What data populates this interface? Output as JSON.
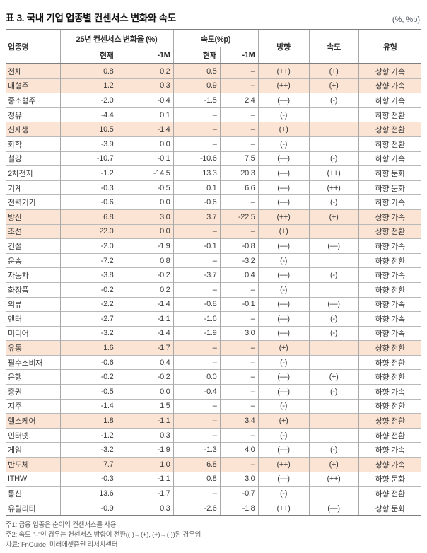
{
  "title": "표 3. 국내 기업 업종별 컨센서스 변화와 속도",
  "unit": "(%, %p)",
  "colors": {
    "highlight": "#fce4d4",
    "border_major": "#7f7f7f",
    "border_minor": "#b9b9b9",
    "text": "#3a3a3a"
  },
  "table": {
    "col_sector": "업종명",
    "group_change": "25년 컨센서스 변화율 (%)",
    "group_speed": "속도(%p)",
    "sub_now": "현재",
    "sub_1m": "-1M",
    "col_direction": "방향",
    "col_speed": "속도",
    "col_type": "유형",
    "rows": [
      {
        "name": "전체",
        "chg_now": "0.8",
        "chg_1m": "0.2",
        "spd_now": "0.5",
        "spd_1m": "–",
        "dir": "(++)",
        "spd": "(+)",
        "type": "상향 가속",
        "hl": true
      },
      {
        "name": "대형주",
        "chg_now": "1.2",
        "chg_1m": "0.3",
        "spd_now": "0.9",
        "spd_1m": "–",
        "dir": "(++)",
        "spd": "(+)",
        "type": "상향 가속",
        "hl": true
      },
      {
        "name": "중소형주",
        "chg_now": "-2.0",
        "chg_1m": "-0.4",
        "spd_now": "-1.5",
        "spd_1m": "2.4",
        "dir": "(—)",
        "spd": "(-)",
        "type": "하향 가속",
        "hl": false
      },
      {
        "name": "정유",
        "chg_now": "-4.4",
        "chg_1m": "0.1",
        "spd_now": "–",
        "spd_1m": "–",
        "dir": "(-)",
        "spd": "",
        "type": "하향 전환",
        "hl": false
      },
      {
        "name": "신재생",
        "chg_now": "10.5",
        "chg_1m": "-1.4",
        "spd_now": "–",
        "spd_1m": "–",
        "dir": "(+)",
        "spd": "",
        "type": "상향 전환",
        "hl": true
      },
      {
        "name": "화학",
        "chg_now": "-3.9",
        "chg_1m": "0.0",
        "spd_now": "–",
        "spd_1m": "–",
        "dir": "(-)",
        "spd": "",
        "type": "하향 전환",
        "hl": false
      },
      {
        "name": "철강",
        "chg_now": "-10.7",
        "chg_1m": "-0.1",
        "spd_now": "-10.6",
        "spd_1m": "7.5",
        "dir": "(—)",
        "spd": "(-)",
        "type": "하향 가속",
        "hl": false
      },
      {
        "name": "2차전지",
        "chg_now": "-1.2",
        "chg_1m": "-14.5",
        "spd_now": "13.3",
        "spd_1m": "20.3",
        "dir": "(—)",
        "spd": "(++)",
        "type": "하향 둔화",
        "hl": false
      },
      {
        "name": "기계",
        "chg_now": "-0.3",
        "chg_1m": "-0.5",
        "spd_now": "0.1",
        "spd_1m": "6.6",
        "dir": "(—)",
        "spd": "(++)",
        "type": "하향 둔화",
        "hl": false
      },
      {
        "name": "전력기기",
        "chg_now": "-0.6",
        "chg_1m": "0.0",
        "spd_now": "-0.6",
        "spd_1m": "–",
        "dir": "(—)",
        "spd": "(-)",
        "type": "하향 가속",
        "hl": false
      },
      {
        "name": "방산",
        "chg_now": "6.8",
        "chg_1m": "3.0",
        "spd_now": "3.7",
        "spd_1m": "-22.5",
        "dir": "(++)",
        "spd": "(+)",
        "type": "상향 가속",
        "hl": true
      },
      {
        "name": "조선",
        "chg_now": "22.0",
        "chg_1m": "0.0",
        "spd_now": "–",
        "spd_1m": "–",
        "dir": "(+)",
        "spd": "",
        "type": "상향 전환",
        "hl": true
      },
      {
        "name": "건설",
        "chg_now": "-2.0",
        "chg_1m": "-1.9",
        "spd_now": "-0.1",
        "spd_1m": "-0.8",
        "dir": "(—)",
        "spd": "(—)",
        "type": "하향 가속",
        "hl": false
      },
      {
        "name": "운송",
        "chg_now": "-7.2",
        "chg_1m": "0.8",
        "spd_now": "–",
        "spd_1m": "-3.2",
        "dir": "(-)",
        "spd": "",
        "type": "하향 전환",
        "hl": false
      },
      {
        "name": "자동차",
        "chg_now": "-3.8",
        "chg_1m": "-0.2",
        "spd_now": "-3.7",
        "spd_1m": "0.4",
        "dir": "(—)",
        "spd": "(-)",
        "type": "하향 가속",
        "hl": false
      },
      {
        "name": "화장품",
        "chg_now": "-0.2",
        "chg_1m": "0.2",
        "spd_now": "–",
        "spd_1m": "–",
        "dir": "(-)",
        "spd": "",
        "type": "하향 전환",
        "hl": false
      },
      {
        "name": "의류",
        "chg_now": "-2.2",
        "chg_1m": "-1.4",
        "spd_now": "-0.8",
        "spd_1m": "-0.1",
        "dir": "(—)",
        "spd": "(—)",
        "type": "하향 가속",
        "hl": false
      },
      {
        "name": "엔터",
        "chg_now": "-2.7",
        "chg_1m": "-1.1",
        "spd_now": "-1.6",
        "spd_1m": "–",
        "dir": "(—)",
        "spd": "(-)",
        "type": "하향 가속",
        "hl": false
      },
      {
        "name": "미디어",
        "chg_now": "-3.2",
        "chg_1m": "-1.4",
        "spd_now": "-1.9",
        "spd_1m": "3.0",
        "dir": "(—)",
        "spd": "(-)",
        "type": "하향 가속",
        "hl": false
      },
      {
        "name": "유통",
        "chg_now": "1.6",
        "chg_1m": "-1.7",
        "spd_now": "–",
        "spd_1m": "–",
        "dir": "(+)",
        "spd": "",
        "type": "상향 전환",
        "hl": true
      },
      {
        "name": "필수소비재",
        "chg_now": "-0.6",
        "chg_1m": "0.4",
        "spd_now": "–",
        "spd_1m": "–",
        "dir": "(-)",
        "spd": "",
        "type": "하향 전환",
        "hl": false
      },
      {
        "name": "은행",
        "chg_now": "-0.2",
        "chg_1m": "-0.2",
        "spd_now": "0.0",
        "spd_1m": "–",
        "dir": "(—)",
        "spd": "(+)",
        "type": "하향 전환",
        "hl": false
      },
      {
        "name": "증권",
        "chg_now": "-0.5",
        "chg_1m": "0.0",
        "spd_now": "-0.4",
        "spd_1m": "–",
        "dir": "(—)",
        "spd": "(-)",
        "type": "하향 가속",
        "hl": false
      },
      {
        "name": "지주",
        "chg_now": "-1.4",
        "chg_1m": "1.5",
        "spd_now": "–",
        "spd_1m": "–",
        "dir": "(-)",
        "spd": "",
        "type": "하향 전환",
        "hl": false
      },
      {
        "name": "헬스케어",
        "chg_now": "1.8",
        "chg_1m": "-1.1",
        "spd_now": "–",
        "spd_1m": "3.4",
        "dir": "(+)",
        "spd": "",
        "type": "상향 전환",
        "hl": true
      },
      {
        "name": "인터넷",
        "chg_now": "-1.2",
        "chg_1m": "0.3",
        "spd_now": "–",
        "spd_1m": "–",
        "dir": "(-)",
        "spd": "",
        "type": "하향 전환",
        "hl": false
      },
      {
        "name": "게임",
        "chg_now": "-3.2",
        "chg_1m": "-1.9",
        "spd_now": "-1.3",
        "spd_1m": "4.0",
        "dir": "(—)",
        "spd": "(-)",
        "type": "하향 가속",
        "hl": false
      },
      {
        "name": "반도체",
        "chg_now": "7.7",
        "chg_1m": "1.0",
        "spd_now": "6.8",
        "spd_1m": "–",
        "dir": "(++)",
        "spd": "(+)",
        "type": "상향 가속",
        "hl": true
      },
      {
        "name": "ITHW",
        "chg_now": "-0.3",
        "chg_1m": "-1.1",
        "spd_now": "0.8",
        "spd_1m": "3.0",
        "dir": "(—)",
        "spd": "(++)",
        "type": "하향 둔화",
        "hl": false
      },
      {
        "name": "통신",
        "chg_now": "13.6",
        "chg_1m": "-1.7",
        "spd_now": "–",
        "spd_1m": "-0.7",
        "dir": "(-)",
        "spd": "",
        "type": "하향 전환",
        "hl": false
      },
      {
        "name": "유틸리티",
        "chg_now": "-0.9",
        "chg_1m": "0.3",
        "spd_now": "-2.6",
        "spd_1m": "-1.8",
        "dir": "(++)",
        "spd": "(—)",
        "type": "상향 둔화",
        "hl": false
      }
    ]
  },
  "footnotes": [
    "주1: 금융 업종은 순이익 컨센서스를 사용",
    "주2: 속도 “–”인 경우는 컨센서스 방향이 전환((-)→(+), (+)→(-))된 경우임",
    "자료: FnGuide, 미래에셋증권 리서치센터"
  ]
}
